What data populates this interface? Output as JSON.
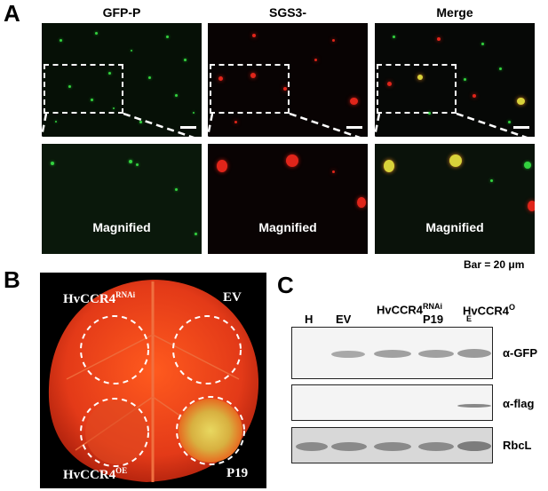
{
  "panels": {
    "a": {
      "letter": "A",
      "columns": [
        "GFP-P",
        "SGS3-",
        "Merge"
      ],
      "magnified_label": "Magnified",
      "bar_note": "Bar = 20 μm"
    },
    "b": {
      "letter": "B",
      "spots": {
        "top_left": {
          "main": "HvCCR4",
          "sup": "RNAi"
        },
        "top_right": {
          "main": "EV"
        },
        "bottom_left": {
          "main": "HvCCR4",
          "sup": "OE"
        },
        "bottom_right": {
          "main": "P19"
        }
      }
    },
    "c": {
      "letter": "C",
      "lanes": [
        {
          "main": "H"
        },
        {
          "main": "EV"
        },
        {
          "main": "HvCCR4",
          "sup": "RNAi"
        },
        {
          "main": "P19"
        },
        {
          "main": "HvCCR4",
          "sup": "O",
          "sub": "E"
        }
      ],
      "blots": [
        "α-GFP",
        "α-flag",
        "RbcL"
      ]
    }
  },
  "colors": {
    "gfp_green": "#33d23f",
    "sgs3_red": "#e0251a",
    "merge_yellow": "#d8d23a",
    "leaf_red": "#e4381a"
  }
}
